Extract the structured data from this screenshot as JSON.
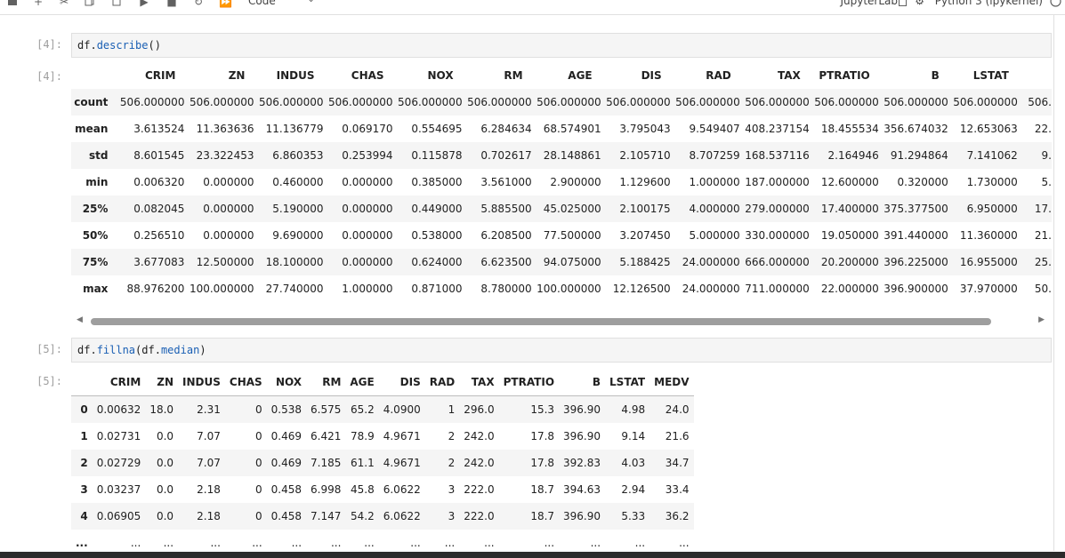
{
  "toolbar": {
    "cell_type": "Code",
    "workspace_label": "JupyterLab",
    "kernel_name": "Python 3 (ipykernel)"
  },
  "cells": [
    {
      "in_prompt": "[4]:",
      "out_prompt": "[4]:",
      "code_obj": "df",
      "code_method": "describe",
      "code_args": "()"
    },
    {
      "in_prompt": "[5]:",
      "out_prompt": "[5]:",
      "code_obj": "df",
      "code_method": "fillna",
      "code_args_open": "(df.",
      "code_arg_attr": "median",
      "code_args_close": ")"
    }
  ],
  "describe_table": {
    "columns": [
      "CRIM",
      "ZN",
      "INDUS",
      "CHAS",
      "NOX",
      "RM",
      "AGE",
      "DIS",
      "RAD",
      "TAX",
      "PTRATIO",
      "B",
      "LSTAT",
      ""
    ],
    "rows": [
      {
        "label": "count",
        "values": [
          "506.000000",
          "506.000000",
          "506.000000",
          "506.000000",
          "506.000000",
          "506.000000",
          "506.000000",
          "506.000000",
          "506.000000",
          "506.000000",
          "506.000000",
          "506.000000",
          "506.000000",
          "506."
        ]
      },
      {
        "label": "mean",
        "values": [
          "3.613524",
          "11.363636",
          "11.136779",
          "0.069170",
          "0.554695",
          "6.284634",
          "68.574901",
          "3.795043",
          "9.549407",
          "408.237154",
          "18.455534",
          "356.674032",
          "12.653063",
          "22."
        ]
      },
      {
        "label": "std",
        "values": [
          "8.601545",
          "23.322453",
          "6.860353",
          "0.253994",
          "0.115878",
          "0.702617",
          "28.148861",
          "2.105710",
          "8.707259",
          "168.537116",
          "2.164946",
          "91.294864",
          "7.141062",
          "9."
        ]
      },
      {
        "label": "min",
        "values": [
          "0.006320",
          "0.000000",
          "0.460000",
          "0.000000",
          "0.385000",
          "3.561000",
          "2.900000",
          "1.129600",
          "1.000000",
          "187.000000",
          "12.600000",
          "0.320000",
          "1.730000",
          "5."
        ]
      },
      {
        "label": "25%",
        "values": [
          "0.082045",
          "0.000000",
          "5.190000",
          "0.000000",
          "0.449000",
          "5.885500",
          "45.025000",
          "2.100175",
          "4.000000",
          "279.000000",
          "17.400000",
          "375.377500",
          "6.950000",
          "17."
        ]
      },
      {
        "label": "50%",
        "values": [
          "0.256510",
          "0.000000",
          "9.690000",
          "0.000000",
          "0.538000",
          "6.208500",
          "77.500000",
          "3.207450",
          "5.000000",
          "330.000000",
          "19.050000",
          "391.440000",
          "11.360000",
          "21."
        ]
      },
      {
        "label": "75%",
        "values": [
          "3.677083",
          "12.500000",
          "18.100000",
          "0.000000",
          "0.624000",
          "6.623500",
          "94.075000",
          "5.188425",
          "24.000000",
          "666.000000",
          "20.200000",
          "396.225000",
          "16.955000",
          "25."
        ]
      },
      {
        "label": "max",
        "values": [
          "88.976200",
          "100.000000",
          "27.740000",
          "1.000000",
          "0.871000",
          "8.780000",
          "100.000000",
          "12.126500",
          "24.000000",
          "711.000000",
          "22.000000",
          "396.900000",
          "37.970000",
          "50."
        ]
      }
    ]
  },
  "fillna_table": {
    "columns": [
      "CRIM",
      "ZN",
      "INDUS",
      "CHAS",
      "NOX",
      "RM",
      "AGE",
      "DIS",
      "RAD",
      "TAX",
      "PTRATIO",
      "B",
      "LSTAT",
      "MEDV"
    ],
    "rows": [
      {
        "label": "0",
        "values": [
          "0.00632",
          "18.0",
          "2.31",
          "0",
          "0.538",
          "6.575",
          "65.2",
          "4.0900",
          "1",
          "296.0",
          "15.3",
          "396.90",
          "4.98",
          "24.0"
        ]
      },
      {
        "label": "1",
        "values": [
          "0.02731",
          "0.0",
          "7.07",
          "0",
          "0.469",
          "6.421",
          "78.9",
          "4.9671",
          "2",
          "242.0",
          "17.8",
          "396.90",
          "9.14",
          "21.6"
        ]
      },
      {
        "label": "2",
        "values": [
          "0.02729",
          "0.0",
          "7.07",
          "0",
          "0.469",
          "7.185",
          "61.1",
          "4.9671",
          "2",
          "242.0",
          "17.8",
          "392.83",
          "4.03",
          "34.7"
        ]
      },
      {
        "label": "3",
        "values": [
          "0.03237",
          "0.0",
          "2.18",
          "0",
          "0.458",
          "6.998",
          "45.8",
          "6.0622",
          "3",
          "222.0",
          "18.7",
          "394.63",
          "2.94",
          "33.4"
        ]
      },
      {
        "label": "4",
        "values": [
          "0.06905",
          "0.0",
          "2.18",
          "0",
          "0.458",
          "7.147",
          "54.2",
          "6.0622",
          "3",
          "222.0",
          "18.7",
          "396.90",
          "5.33",
          "36.2"
        ]
      },
      {
        "label": "...",
        "values": [
          "...",
          "...",
          "...",
          "...",
          "...",
          "...",
          "...",
          "...",
          "...",
          "...",
          "...",
          "...",
          "...",
          "..."
        ]
      }
    ]
  },
  "icons": [
    "save-icon",
    "add-icon",
    "cut-icon",
    "copy-icon",
    "paste-icon",
    "run-icon",
    "stop-icon",
    "restart-icon",
    "fast-forward-icon",
    "chevron-down-icon",
    "bug-icon",
    "kernel-status-icon"
  ]
}
